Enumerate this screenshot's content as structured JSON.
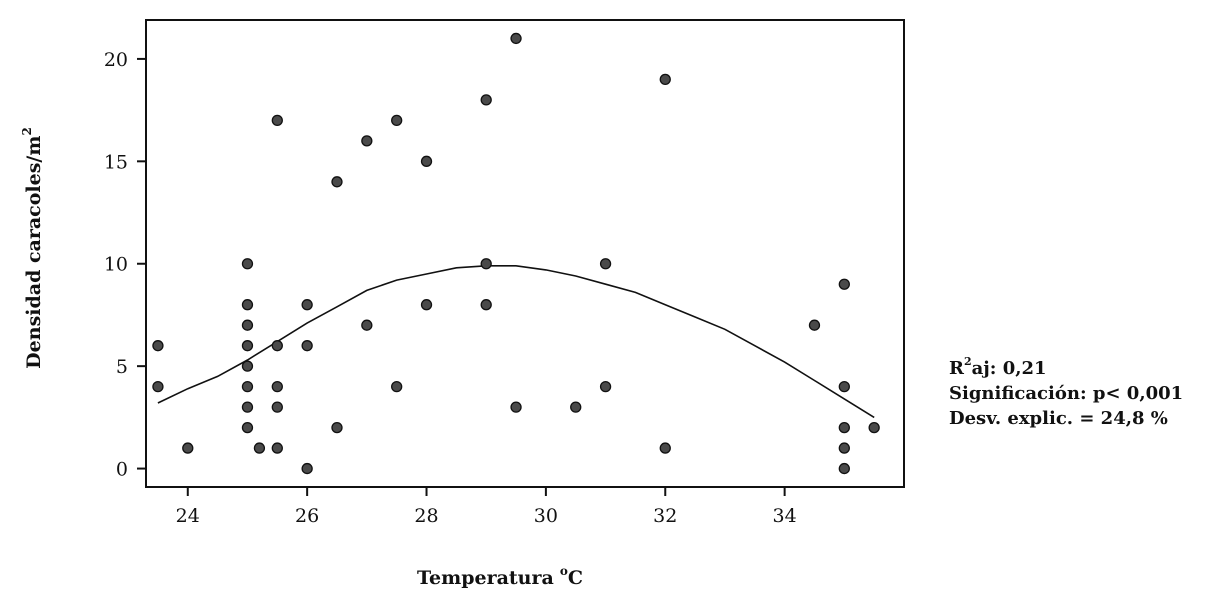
{
  "chart_data": {
    "type": "scatter",
    "xlabel": "Temperatura",
    "xlabel_unit_sup": "o",
    "xlabel_unit": "C",
    "ylabel": "Densidad caracoles/m",
    "ylabel_sup": "2",
    "xlim": [
      23.3,
      36.0
    ],
    "ylim": [
      -0.9,
      21.9
    ],
    "x_ticks": [
      24,
      26,
      28,
      30,
      32,
      34
    ],
    "y_ticks": [
      0,
      5,
      10,
      15,
      20
    ],
    "grid": false,
    "points": [
      {
        "x": 23.5,
        "y": 6
      },
      {
        "x": 23.5,
        "y": 4
      },
      {
        "x": 24,
        "y": 1
      },
      {
        "x": 25,
        "y": 10
      },
      {
        "x": 25,
        "y": 8
      },
      {
        "x": 25,
        "y": 7
      },
      {
        "x": 25,
        "y": 6
      },
      {
        "x": 25,
        "y": 5
      },
      {
        "x": 25,
        "y": 4
      },
      {
        "x": 25,
        "y": 3
      },
      {
        "x": 25,
        "y": 2
      },
      {
        "x": 25.2,
        "y": 1
      },
      {
        "x": 25.5,
        "y": 17
      },
      {
        "x": 25.5,
        "y": 6
      },
      {
        "x": 25.5,
        "y": 4
      },
      {
        "x": 25.5,
        "y": 3
      },
      {
        "x": 25.5,
        "y": 1
      },
      {
        "x": 26,
        "y": 8
      },
      {
        "x": 26,
        "y": 6
      },
      {
        "x": 26,
        "y": 0
      },
      {
        "x": 26.5,
        "y": 14
      },
      {
        "x": 26.5,
        "y": 2
      },
      {
        "x": 27,
        "y": 16
      },
      {
        "x": 27,
        "y": 7
      },
      {
        "x": 27.5,
        "y": 17
      },
      {
        "x": 27.5,
        "y": 4
      },
      {
        "x": 28,
        "y": 15
      },
      {
        "x": 28,
        "y": 8
      },
      {
        "x": 29,
        "y": 18
      },
      {
        "x": 29,
        "y": 10
      },
      {
        "x": 29,
        "y": 8
      },
      {
        "x": 29.5,
        "y": 21
      },
      {
        "x": 29.5,
        "y": 3
      },
      {
        "x": 30.5,
        "y": 3
      },
      {
        "x": 31,
        "y": 10
      },
      {
        "x": 31,
        "y": 4
      },
      {
        "x": 32,
        "y": 19
      },
      {
        "x": 32,
        "y": 1
      },
      {
        "x": 34.5,
        "y": 7
      },
      {
        "x": 35,
        "y": 9
      },
      {
        "x": 35,
        "y": 4
      },
      {
        "x": 35,
        "y": 2
      },
      {
        "x": 35,
        "y": 1
      },
      {
        "x": 35,
        "y": 0
      },
      {
        "x": 35.5,
        "y": 2
      }
    ],
    "fit_curve": {
      "name": "",
      "points": [
        {
          "x": 23.5,
          "y": 3.2
        },
        {
          "x": 24.0,
          "y": 3.9
        },
        {
          "x": 24.5,
          "y": 4.5
        },
        {
          "x": 25.0,
          "y": 5.3
        },
        {
          "x": 25.5,
          "y": 6.2
        },
        {
          "x": 26.0,
          "y": 7.1
        },
        {
          "x": 26.5,
          "y": 7.9
        },
        {
          "x": 27.0,
          "y": 8.7
        },
        {
          "x": 27.5,
          "y": 9.2
        },
        {
          "x": 28.0,
          "y": 9.5
        },
        {
          "x": 28.5,
          "y": 9.8
        },
        {
          "x": 29.0,
          "y": 9.9
        },
        {
          "x": 29.5,
          "y": 9.9
        },
        {
          "x": 30.0,
          "y": 9.7
        },
        {
          "x": 30.5,
          "y": 9.4
        },
        {
          "x": 31.0,
          "y": 9.0
        },
        {
          "x": 31.5,
          "y": 8.6
        },
        {
          "x": 32.0,
          "y": 8.0
        },
        {
          "x": 32.5,
          "y": 7.4
        },
        {
          "x": 33.0,
          "y": 6.8
        },
        {
          "x": 33.5,
          "y": 6.0
        },
        {
          "x": 34.0,
          "y": 5.2
        },
        {
          "x": 34.5,
          "y": 4.3
        },
        {
          "x": 35.0,
          "y": 3.4
        },
        {
          "x": 35.5,
          "y": 2.5
        }
      ]
    }
  },
  "stats": {
    "r2_prefix": "R",
    "r2_sup": "2",
    "r2_rest": "aj: 0,21",
    "significance": "Significación: p< 0,001",
    "deviance": "Desv. explic. = 24,8 %"
  },
  "colors": {
    "point_fill": "#4a4a4a",
    "point_stroke": "#111111",
    "curve": "#111111",
    "frame": "#111111"
  }
}
